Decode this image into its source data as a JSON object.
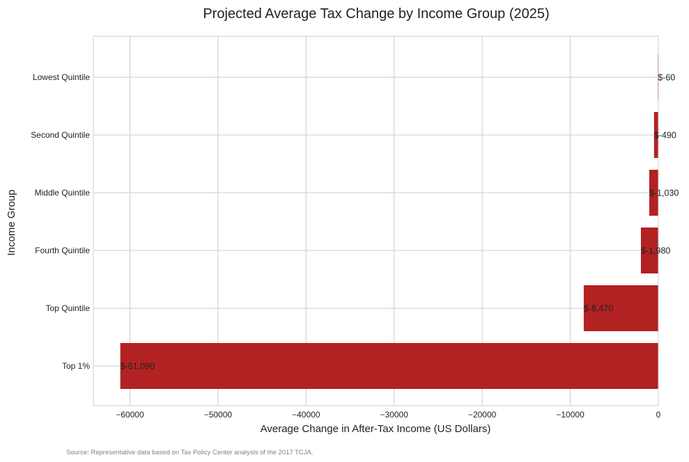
{
  "colors": {
    "bar": "#b22222",
    "grid": "#cccccc",
    "frame": "#cccccc",
    "text": "#222222",
    "note": "#808080"
  },
  "source_note": "Source: Representative data based on Tax Policy Center analysis of the 2017 TCJA.",
  "chart_data": {
    "type": "bar",
    "orientation": "horizontal",
    "title": "Projected Average Tax Change by Income Group (2025)",
    "xlabel": "Average Change in After-Tax Income (US Dollars)",
    "ylabel": "Income Group",
    "categories": [
      "Lowest Quintile",
      "Second Quintile",
      "Middle Quintile",
      "Fourth Quintile",
      "Top Quintile",
      "Top 1%"
    ],
    "values": [
      -60,
      -490,
      -1030,
      -1980,
      -8470,
      -61090
    ],
    "data_labels": [
      "$-60",
      "$-490",
      "$-1,030",
      "$-1,980",
      "$-8,470",
      "$-61,090"
    ],
    "xlim": [
      -64150,
      0
    ],
    "x_ticks": [
      -60000,
      -50000,
      -40000,
      -30000,
      -20000,
      -10000,
      0
    ],
    "x_tick_labels": [
      "−60000",
      "−50000",
      "−40000",
      "−30000",
      "−20000",
      "−10000",
      "0"
    ],
    "grid": true,
    "legend": "none"
  }
}
